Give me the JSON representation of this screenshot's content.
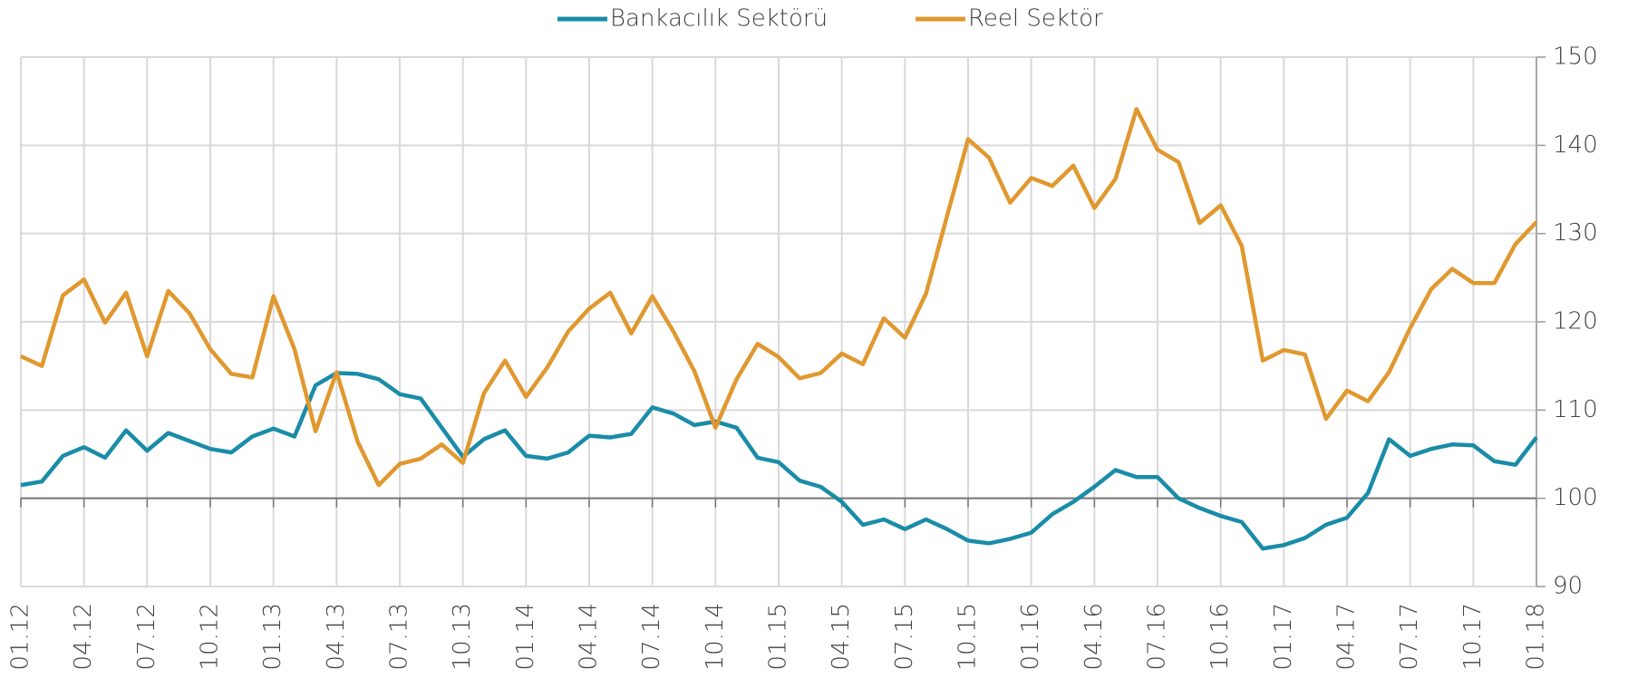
{
  "chart_data": {
    "type": "line",
    "categories": [
      "01.12",
      null,
      null,
      "04.12",
      null,
      null,
      "07.12",
      null,
      null,
      "10.12",
      null,
      null,
      "01.13",
      null,
      null,
      "04.13",
      null,
      null,
      "07.13",
      null,
      null,
      "10.13",
      null,
      null,
      "01.14",
      null,
      null,
      "04.14",
      null,
      null,
      "07.14",
      null,
      null,
      "10.14",
      null,
      null,
      "01.15",
      null,
      null,
      "04.15",
      null,
      null,
      "07.15",
      null,
      null,
      "10.15",
      null,
      null,
      "01.16",
      null,
      null,
      "04.16",
      null,
      null,
      "07.16",
      null,
      null,
      "10.16",
      null,
      null,
      "01.17",
      null,
      null,
      "04.17",
      null,
      null,
      "07.17",
      null,
      null,
      "10.17",
      null,
      null,
      "01.18"
    ],
    "series": [
      {
        "name": "Bankacılık Sektörü",
        "color": "#1a8ca8",
        "values": [
          101.5,
          101.9,
          104.8,
          105.8,
          104.6,
          107.7,
          105.4,
          107.4,
          106.5,
          105.6,
          105.2,
          107.0,
          107.9,
          107.0,
          112.8,
          114.2,
          114.1,
          113.5,
          111.8,
          111.3,
          108.0,
          104.7,
          106.7,
          107.7,
          104.8,
          104.5,
          105.2,
          107.1,
          106.9,
          107.3,
          110.3,
          109.6,
          108.3,
          108.7,
          108.0,
          104.6,
          104.1,
          102.0,
          101.3,
          99.6,
          97.0,
          97.6,
          96.5,
          97.6,
          96.5,
          95.2,
          94.9,
          95.4,
          96.1,
          98.2,
          99.6,
          101.3,
          103.2,
          102.4,
          102.4,
          100.0,
          98.9,
          98.0,
          97.3,
          94.3,
          94.7,
          95.5,
          97.0,
          97.8,
          100.6,
          106.7,
          104.8,
          105.6,
          106.1,
          106.0,
          104.2,
          103.8,
          106.9
        ]
      },
      {
        "name": "Reel Sektör",
        "color": "#e0982f",
        "values": [
          116.1,
          115.0,
          123.0,
          124.8,
          119.9,
          123.3,
          116.1,
          123.5,
          121.0,
          116.9,
          114.1,
          113.7,
          122.9,
          116.9,
          107.6,
          114.3,
          106.4,
          101.5,
          103.9,
          104.5,
          106.1,
          104.0,
          111.9,
          115.6,
          111.5,
          114.8,
          118.9,
          121.5,
          123.3,
          118.7,
          122.9,
          118.9,
          114.4,
          108.0,
          113.5,
          117.5,
          116.0,
          113.6,
          114.2,
          116.4,
          115.2,
          120.4,
          118.2,
          123.2,
          132.0,
          140.7,
          138.6,
          133.5,
          136.3,
          135.4,
          137.7,
          132.9,
          136.2,
          144.1,
          139.5,
          138.1,
          131.2,
          133.2,
          128.6,
          115.6,
          116.8,
          116.3,
          109.0,
          112.2,
          111.0,
          114.3,
          119.3,
          123.7,
          126.0,
          124.4,
          124.4,
          128.8,
          131.3
        ]
      }
    ],
    "ylim": [
      90,
      150
    ],
    "yticks": [
      90,
      100,
      110,
      120,
      130,
      140,
      150
    ],
    "y_axis_side": "right",
    "x_axis_crossing": 100,
    "grid": true,
    "legend": "top"
  }
}
